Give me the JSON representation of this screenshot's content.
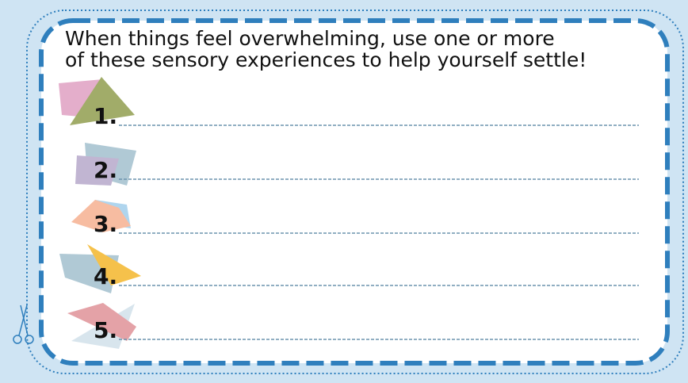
{
  "heading": "When things feel overwhelming, use one or more of these sensory experiences to help yourself settle!",
  "items": [
    "1.",
    "2.",
    "3.",
    "4.",
    "5."
  ]
}
